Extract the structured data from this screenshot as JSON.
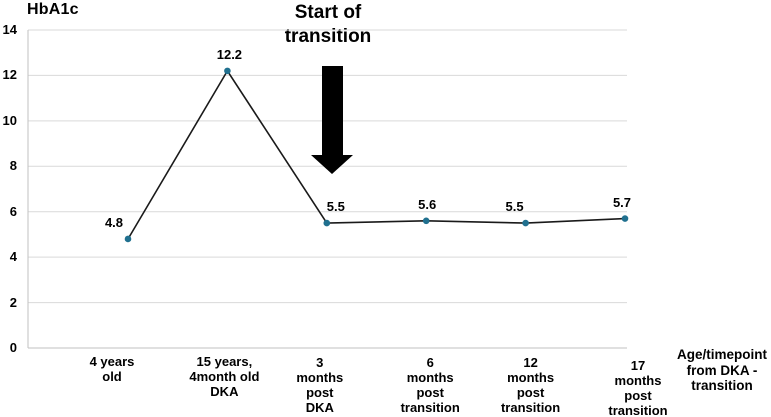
{
  "chart_data": {
    "type": "line",
    "title": "HbA1c",
    "categories": [
      "4 years old",
      "15 years, 4month old DKA",
      "3 months post DKA",
      "6 months post transition",
      "12 months post transition",
      "17 months post transition"
    ],
    "category_label_lines": [
      [
        "4 years",
        "old"
      ],
      [
        "15 years,",
        "4month old",
        "DKA"
      ],
      [
        "3",
        "months",
        "post",
        "DKA"
      ],
      [
        "6",
        "months",
        "post",
        "transition"
      ],
      [
        "12",
        "months",
        "post",
        "transition"
      ],
      [
        "17",
        "months",
        "post",
        "transition"
      ]
    ],
    "values": [
      4.8,
      12.2,
      5.5,
      5.6,
      5.5,
      5.7
    ],
    "data_labels": [
      "4.8",
      "12.2",
      "5.5",
      "5.6",
      "5.5",
      "5.7"
    ],
    "ylim": [
      0,
      14
    ],
    "y_ticks": [
      0,
      2,
      4,
      6,
      8,
      10,
      12,
      14
    ],
    "grid": "horizontal-only",
    "legend": "none",
    "x_axis_title": "Age/timepoint from DKA - transition",
    "x_axis_title_lines": [
      "Age/timepoint",
      "from DKA -",
      "transition"
    ],
    "annotation": {
      "label": "Start of transition",
      "label_lines": [
        "Start of",
        "transition"
      ],
      "arrow": "thick-down-arrow",
      "points_to_category": "3 months post DKA"
    },
    "colors": {
      "line": "#1a1a1a",
      "marker": "#20708f",
      "gridline": "#d9d9d9",
      "axis_line": "#c2c2c2",
      "text": "#000000",
      "arrow": "#000000",
      "background": "#ffffff"
    }
  }
}
